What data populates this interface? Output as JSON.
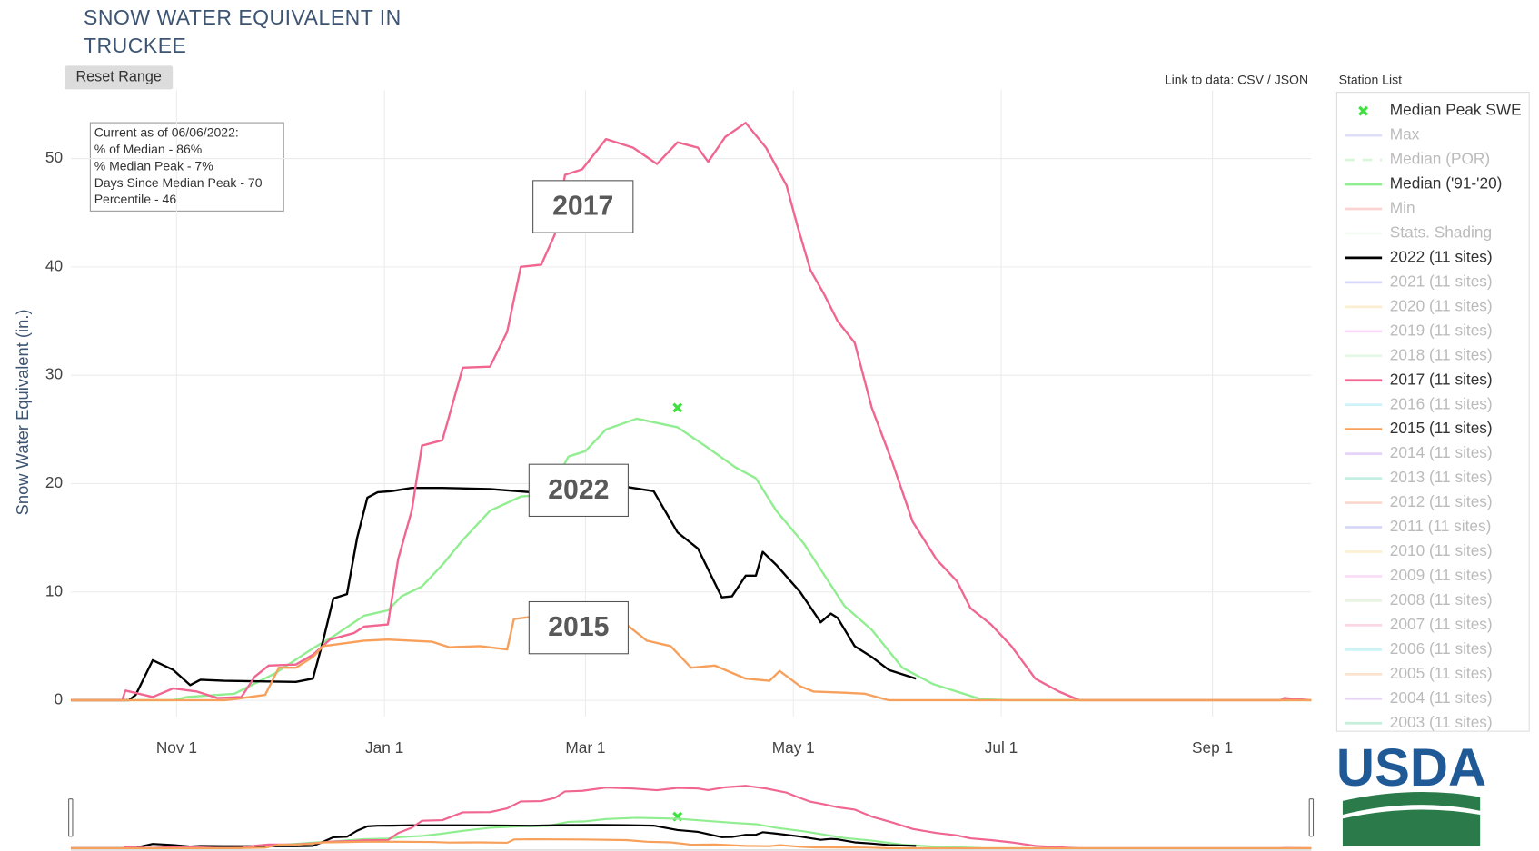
{
  "chart_data": {
    "type": "line",
    "title": "SNOW WATER EQUIVALENT IN TRUCKEE",
    "button": "Reset Range",
    "link_text": "Link to data: CSV / JSON",
    "legend_title": "Station List",
    "y_label": "Snow Water Equivalent (in.)",
    "logo": "USDA",
    "info_box": [
      "Current as of 06/06/2022:",
      "% of Median - 86%",
      "% Median Peak - 7%",
      "Days Since Median Peak - 70",
      "Percentile - 46"
    ],
    "annotations": [
      "2017",
      "2022",
      "2015"
    ],
    "xlim": [
      0,
      364
    ],
    "xticks": [
      {
        "value": 31,
        "label": "Nov  1"
      },
      {
        "value": 92,
        "label": "Jan  1"
      },
      {
        "value": 151,
        "label": "Mar  1"
      },
      {
        "value": 212,
        "label": "May  1"
      },
      {
        "value": 273,
        "label": "Jul  1"
      },
      {
        "value": 335,
        "label": "Sep  1"
      }
    ],
    "ylim": [
      -1.5,
      56.3
    ],
    "yticks": [
      0,
      10,
      20,
      30,
      40,
      50
    ],
    "grid": true,
    "series": [
      {
        "name": "Median Peak SWE",
        "type": "scatter",
        "color": "#3fe03f",
        "visible": true,
        "x": [
          178
        ],
        "values": [
          27
        ]
      },
      {
        "name": "Max",
        "color": "#b8b8f0",
        "visible": false
      },
      {
        "name": "Median (POR)",
        "color": "#a8eea8",
        "visible": false,
        "dash": true
      },
      {
        "name": "Median ('91-'20)",
        "color": "#90ee90",
        "visible": true,
        "x": [
          0,
          30,
          34,
          48,
          60,
          71,
          77,
          86,
          93,
          97,
          103,
          109,
          115,
          123,
          132,
          140,
          146,
          151,
          157,
          166,
          178,
          186,
          195,
          201,
          207,
          215,
          227,
          235,
          244,
          253,
          260,
          267,
          275,
          364
        ],
        "values": [
          0,
          0,
          0.3,
          0.6,
          2.5,
          4.8,
          5.9,
          7.8,
          8.3,
          9.6,
          10.5,
          12.5,
          14.8,
          17.5,
          18.8,
          19.0,
          22.5,
          23.0,
          25.0,
          26.0,
          25.2,
          23.5,
          21.5,
          20.5,
          17.5,
          14.5,
          8.7,
          6.5,
          3.0,
          1.5,
          0.8,
          0.1,
          0,
          0
        ]
      },
      {
        "name": "Min",
        "color": "#f8a0a0",
        "visible": false
      },
      {
        "name": "Stats. Shading",
        "color": "#e4f8e4",
        "visible": false
      },
      {
        "name": "2022 (11 sites)",
        "color": "#000000",
        "visible": true,
        "x": [
          0,
          17,
          19,
          24,
          30,
          35,
          38,
          45,
          66,
          71,
          74,
          77,
          81,
          84,
          87,
          90,
          94,
          100,
          109,
          123,
          135,
          145,
          155,
          163,
          171,
          178,
          184,
          191,
          194,
          198,
          201,
          203,
          207,
          214,
          220,
          223,
          225,
          230,
          235,
          240,
          248
        ],
        "values": [
          0,
          0,
          0.5,
          3.7,
          2.8,
          1.4,
          1.9,
          1.8,
          1.7,
          2.0,
          5.5,
          9.4,
          9.8,
          15,
          18.7,
          19.2,
          19.3,
          19.6,
          19.6,
          19.5,
          19.2,
          19.8,
          19.9,
          19.7,
          19.3,
          15.5,
          14.0,
          9.5,
          9.6,
          11.5,
          11.5,
          13.7,
          12.5,
          10.0,
          7.2,
          8.0,
          7.6,
          5.0,
          4.0,
          2.8,
          2.0
        ]
      },
      {
        "name": "2021 (11 sites)",
        "color": "#a9a9f5",
        "visible": false
      },
      {
        "name": "2020 (11 sites)",
        "color": "#f9dc9a",
        "visible": false
      },
      {
        "name": "2019 (11 sites)",
        "color": "#f5a8f5",
        "visible": false
      },
      {
        "name": "2018 (11 sites)",
        "color": "#c6eec6",
        "visible": false
      },
      {
        "name": "2017 (11 sites)",
        "color": "#f06690",
        "visible": true,
        "x": [
          0,
          15,
          16,
          24,
          30,
          37,
          43,
          50,
          54,
          58,
          66,
          71,
          76,
          83,
          86,
          93,
          96,
          100,
          103,
          109,
          115,
          123,
          128,
          132,
          138,
          142,
          145,
          150,
          157,
          165,
          172,
          178,
          184,
          187,
          192,
          198,
          204,
          210,
          213,
          217,
          221,
          225,
          230,
          235,
          241,
          247,
          254,
          260,
          264,
          270,
          276,
          283,
          290,
          296,
          355,
          356,
          364
        ],
        "values": [
          0,
          0,
          0.9,
          0.3,
          1.1,
          0.8,
          0.2,
          0.3,
          2.2,
          3.2,
          3.3,
          4.2,
          5.6,
          6.2,
          6.8,
          7.0,
          13.0,
          17.5,
          23.5,
          24,
          30.7,
          30.8,
          34.0,
          40.0,
          40.2,
          43,
          48.5,
          49.0,
          51.8,
          51.0,
          49.5,
          51.5,
          51.0,
          49.7,
          52,
          53.3,
          51.0,
          47.5,
          44,
          39.7,
          37.5,
          35.0,
          33.0,
          27.0,
          22.0,
          16.5,
          13.0,
          11.0,
          8.5,
          7.0,
          5.0,
          2.0,
          0.8,
          0,
          0,
          0.2,
          0
        ]
      },
      {
        "name": "2016 (11 sites)",
        "color": "#8fe4f5",
        "visible": false
      },
      {
        "name": "2015 (11 sites)",
        "color": "#f7a05c",
        "visible": true,
        "x": [
          0,
          45,
          48,
          57,
          61,
          66,
          71,
          74,
          86,
          93,
          106,
          111,
          120,
          128,
          130,
          135,
          150,
          163,
          169,
          176,
          182,
          189,
          198,
          205,
          208,
          214,
          218,
          227,
          233,
          240,
          364
        ],
        "values": [
          0,
          0,
          0.1,
          0.5,
          3.0,
          3.0,
          4.0,
          5.0,
          5.5,
          5.6,
          5.4,
          4.9,
          5.0,
          4.7,
          7.5,
          7.7,
          7.5,
          7.0,
          5.5,
          5.0,
          3.0,
          3.2,
          2.0,
          1.8,
          2.7,
          1.3,
          0.8,
          0.7,
          0.6,
          0,
          0
        ]
      },
      {
        "name": "2014 (11 sites)",
        "color": "#c9a0f0",
        "visible": false
      },
      {
        "name": "2013 (11 sites)",
        "color": "#7fdcc0",
        "visible": false
      },
      {
        "name": "2012 (11 sites)",
        "color": "#f4a890",
        "visible": false
      },
      {
        "name": "2011 (11 sites)",
        "color": "#a8a8ee",
        "visible": false
      },
      {
        "name": "2010 (11 sites)",
        "color": "#f8e09a",
        "visible": false
      },
      {
        "name": "2009 (11 sites)",
        "color": "#f4b0f0",
        "visible": false
      },
      {
        "name": "2008 (11 sites)",
        "color": "#cfe8c0",
        "visible": false
      },
      {
        "name": "2007 (11 sites)",
        "color": "#f7a8c8",
        "visible": false
      },
      {
        "name": "2006 (11 sites)",
        "color": "#8ee8ee",
        "visible": false
      },
      {
        "name": "2005 (11 sites)",
        "color": "#f8c090",
        "visible": false
      },
      {
        "name": "2004 (11 sites)",
        "color": "#c8a0ee",
        "visible": false
      },
      {
        "name": "2003 (11 sites)",
        "color": "#80dcb0",
        "visible": false
      }
    ]
  }
}
